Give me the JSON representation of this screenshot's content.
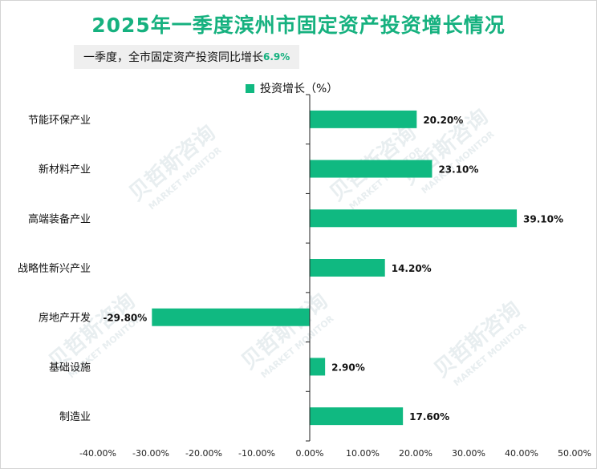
{
  "colors": {
    "accent": "#16b17f",
    "bar": "#10b981",
    "axis": "#222222"
  },
  "subtitle": {
    "prefix": "一季度，全市固定资产投资同比增长",
    "highlight": "6.9%"
  },
  "watermark": {
    "brand": "贝哲斯咨询",
    "tagline": "MARKET MONITOR"
  },
  "chart_data": {
    "type": "bar",
    "orientation": "horizontal",
    "title": "2025年一季度滨州市固定资产投资增长情况",
    "legend_position": "top-center",
    "grid": false,
    "xlim": [
      -40,
      50
    ],
    "xticks": [
      -40,
      -30,
      -20,
      -10,
      0,
      10,
      20,
      30,
      40,
      50
    ],
    "xtick_labels": [
      "-40.00%",
      "-30.00%",
      "-20.00%",
      "-10.00%",
      "0.00%",
      "10.00%",
      "20.00%",
      "30.00%",
      "40.00%",
      "50.00%"
    ],
    "categories": [
      "节能环保产业",
      "新材料产业",
      "高端装备产业",
      "战略性新兴产业",
      "房地产开发",
      "基础设施",
      "制造业"
    ],
    "series": [
      {
        "name": "投资增长（%）",
        "values": [
          20.2,
          23.1,
          39.1,
          14.2,
          -29.8,
          2.9,
          17.6
        ],
        "labels": [
          "20.20%",
          "23.10%",
          "39.10%",
          "14.20%",
          "-29.80%",
          "2.90%",
          "17.60%"
        ]
      }
    ]
  }
}
